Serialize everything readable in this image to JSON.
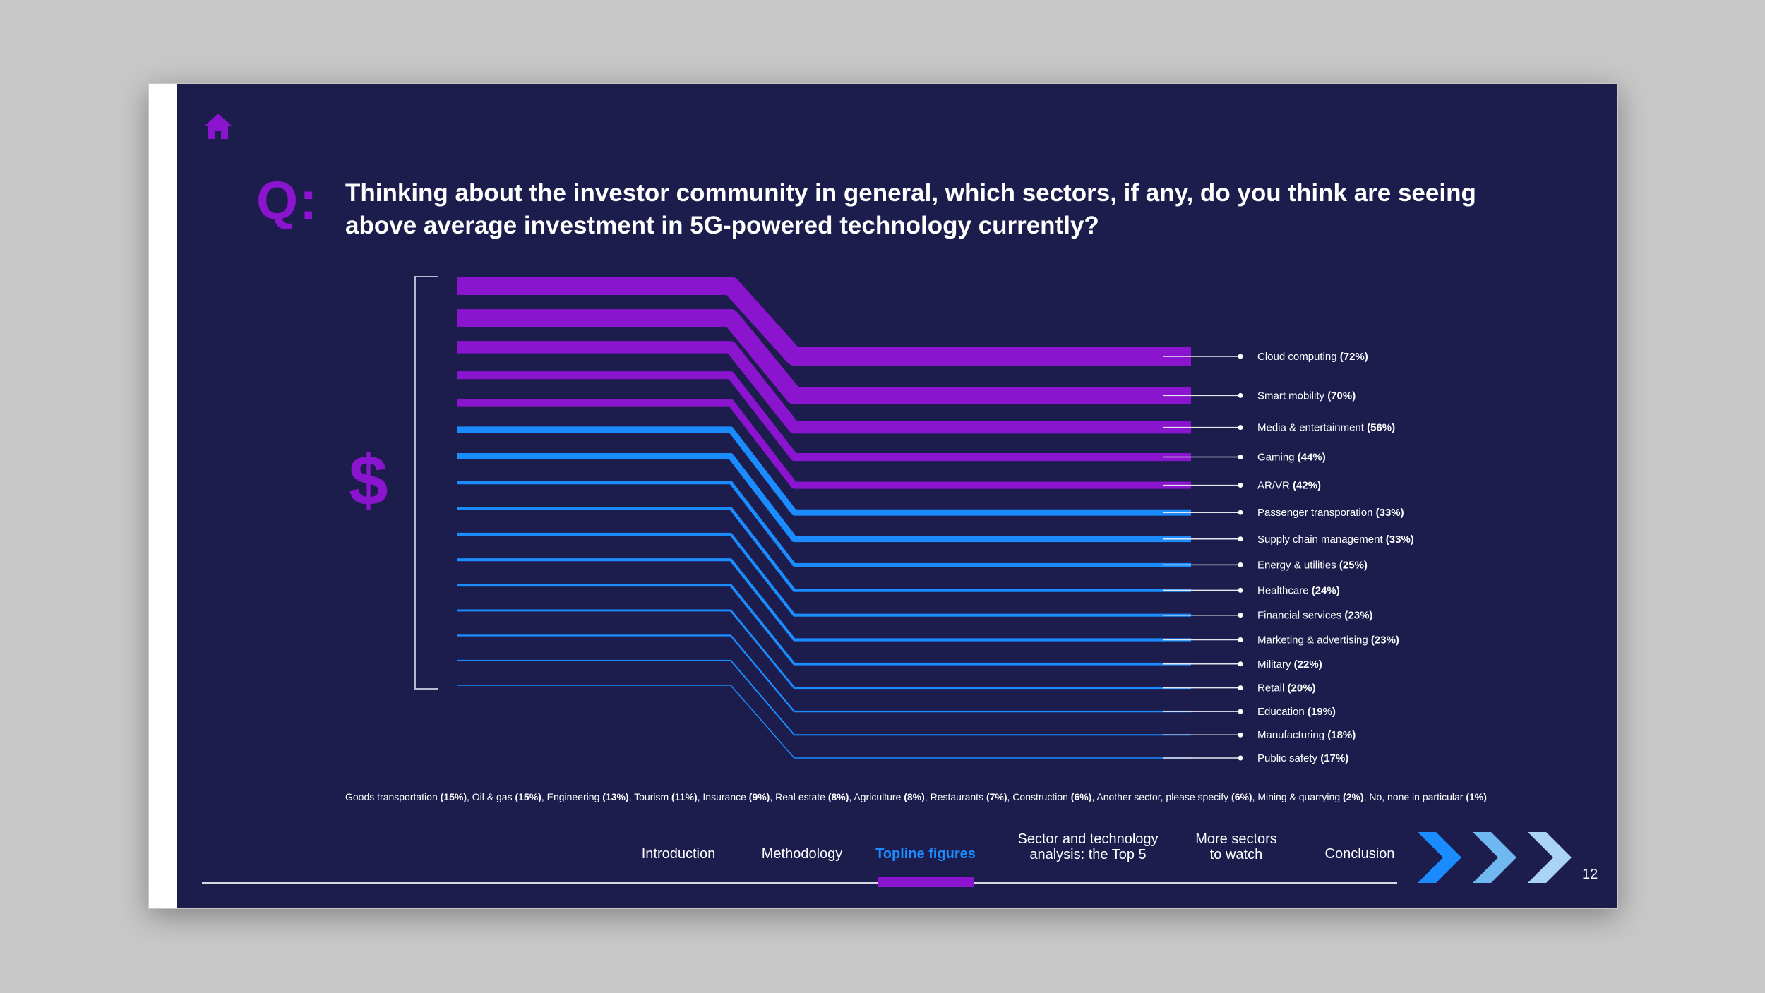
{
  "question": {
    "mark": "Q:",
    "text_line1": "Thinking about the investor community in general, which sectors, if any, do you think are seeing",
    "text_line2": "above average investment in 5G-powered technology currently?"
  },
  "dollar_symbol": "$",
  "colors": {
    "background": "#1c1d4c",
    "purple": "#8b14cf",
    "blue": "#1a8cff"
  },
  "chart_data": {
    "type": "bar",
    "title": "Thinking about the investor community in general, which sectors, if any, do you think are seeing above average investment in 5G-powered technology currently?",
    "unit": "%",
    "categories": [
      "Cloud computing",
      "Smart mobility",
      "Media & entertainment",
      "Gaming",
      "AR/VR",
      "Passenger transporation",
      "Supply chain management",
      "Energy & utilities",
      "Healthcare",
      "Financial services",
      "Marketing & advertising",
      "Military",
      "Retail",
      "Education",
      "Manufacturing",
      "Public safety"
    ],
    "values": [
      72,
      70,
      56,
      44,
      42,
      33,
      33,
      25,
      24,
      23,
      23,
      22,
      20,
      19,
      18,
      17
    ],
    "labels": [
      {
        "name": "Cloud computing",
        "value": "(72%)"
      },
      {
        "name": "Smart mobility",
        "value": "(70%)"
      },
      {
        "name": "Media & entertainment",
        "value": "(56%)"
      },
      {
        "name": "Gaming",
        "value": "(44%)"
      },
      {
        "name": "AR/VR",
        "value": "(42%)"
      },
      {
        "name": "Passenger transporation",
        "value": "(33%)"
      },
      {
        "name": "Supply chain management",
        "value": "(33%)"
      },
      {
        "name": "Energy & utilities",
        "value": "(25%)"
      },
      {
        "name": "Healthcare",
        "value": "(24%)"
      },
      {
        "name": "Financial services",
        "value": "(23%)"
      },
      {
        "name": "Marketing & advertising",
        "value": "(23%)"
      },
      {
        "name": "Military",
        "value": "(22%)"
      },
      {
        "name": "Retail",
        "value": "(20%)"
      },
      {
        "name": "Education",
        "value": "(19%)"
      },
      {
        "name": "Manufacturing",
        "value": "(18%)"
      },
      {
        "name": "Public safety",
        "value": "(17%)"
      }
    ]
  },
  "other_sectors": [
    {
      "name": "Goods transportation",
      "value": "(15%)"
    },
    {
      "name": "Oil & gas",
      "value": "(15%)"
    },
    {
      "name": "Engineering",
      "value": "(13%)"
    },
    {
      "name": "Tourism",
      "value": "(11%)"
    },
    {
      "name": "Insurance",
      "value": "(9%)"
    },
    {
      "name": "Real estate",
      "value": "(8%)"
    },
    {
      "name": "Agriculture",
      "value": "(8%)"
    },
    {
      "name": "Restaurants",
      "value": "(7%)"
    },
    {
      "name": "Construction",
      "value": "(6%)"
    },
    {
      "name": "Another sector, please specify",
      "value": "(6%)"
    },
    {
      "name": "Mining & quarrying",
      "value": "(2%)"
    },
    {
      "name": "No, none in particular",
      "value": "(1%)"
    }
  ],
  "nav": {
    "introduction": "Introduction",
    "methodology": "Methodology",
    "topline": "Topline figures",
    "sector_line1": "Sector and technology",
    "sector_line2": "analysis: the Top 5",
    "more_line1": "More sectors",
    "more_line2": "to watch",
    "conclusion": "Conclusion"
  },
  "page_number": "12"
}
